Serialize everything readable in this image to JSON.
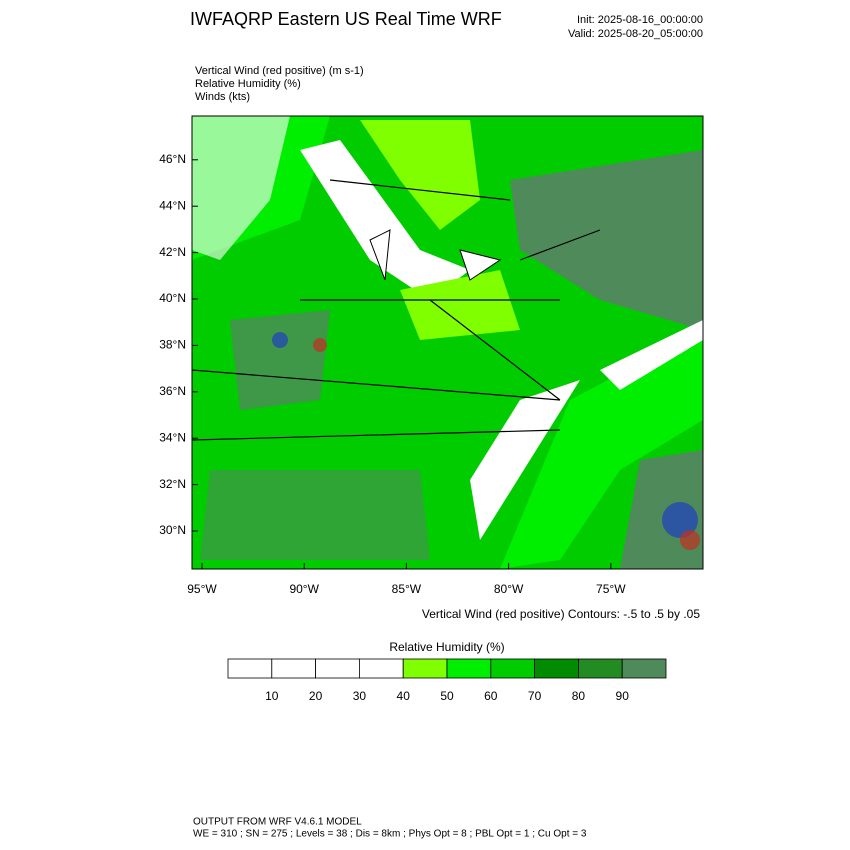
{
  "header": {
    "title": "IWFAQRP Eastern US Real Time WRF",
    "init": "Init: 2025-08-16_00:00:00",
    "valid": "Valid: 2025-08-20_05:00:00"
  },
  "fields": [
    "Vertical Wind (red positive)   (m s-1)",
    "Relative Humidity   (%)",
    "Winds   (kts)"
  ],
  "map": {
    "lat_labels": [
      "30°N",
      "32°N",
      "34°N",
      "36°N",
      "38°N",
      "40°N",
      "42°N",
      "44°N",
      "46°N"
    ],
    "lon_labels": [
      "95°W",
      "90°W",
      "85°W",
      "80°W",
      "75°W"
    ],
    "contour_note": "Vertical Wind (red positive) Contours: -.5 to .5 by .05"
  },
  "colorbar": {
    "title": "Relative Humidity  (%)",
    "labels": [
      "10",
      "20",
      "30",
      "40",
      "50",
      "60",
      "70",
      "80",
      "90"
    ],
    "colors": [
      "#ffffff",
      "#ffffff",
      "#ffffff",
      "#ffffff",
      "#7fff00",
      "#00ee00",
      "#00cc00",
      "#008b00",
      "#228b22",
      "#4f8a5a"
    ]
  },
  "footer": {
    "line1": "OUTPUT FROM WRF V4.6.1 MODEL",
    "line2": "WE = 310 ; SN = 275 ; Levels = 38 ; Dis = 8km ; Phys Opt = 8 ; PBL Opt = 1 ; Cu Opt = 3"
  }
}
